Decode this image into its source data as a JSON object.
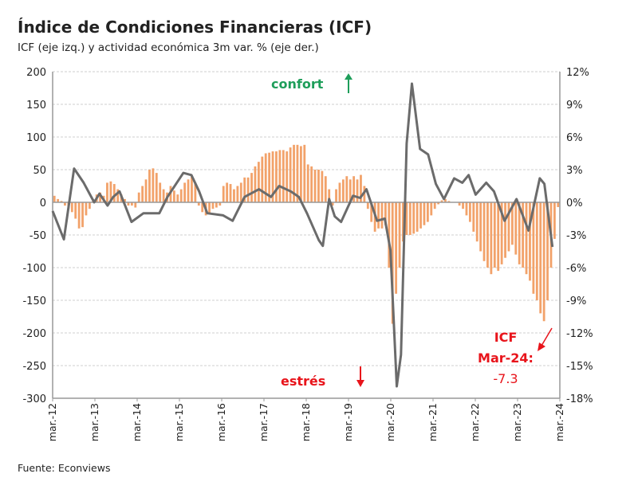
{
  "chart_data": {
    "type": "bar+line",
    "title": "Índice de Condiciones Financieras (ICF)",
    "subtitle": "ICF (eje izq.) y actividad económica 3m var. % (eje der.)",
    "source": "Fuente: Econviews",
    "x_tick_labels": [
      "mar.-12",
      "mar.-13",
      "mar.-14",
      "mar.-15",
      "mar.-16",
      "mar.-17",
      "mar.-18",
      "mar.-19",
      "mar.-20",
      "mar.-21",
      "mar.-22",
      "mar.-23",
      "mar.-24"
    ],
    "x_unit": "months since mar-2012",
    "y_left": {
      "range": [
        -300,
        200
      ],
      "ticks": [
        "200",
        "150",
        "100",
        "50",
        "0",
        "-50",
        "-100",
        "-150",
        "-200",
        "-250",
        "-300"
      ]
    },
    "y_right": {
      "range": [
        -18,
        12
      ],
      "ticks": [
        "12%",
        "9%",
        "6%",
        "3%",
        "0%",
        "-3%",
        "-6%",
        "-9%",
        "-12%",
        "-15%",
        "-18%"
      ]
    },
    "grid": true,
    "series": [
      {
        "name": "ICF",
        "axis": "left",
        "kind": "bar",
        "color": "#F2A26A",
        "values": [
          10,
          5,
          2,
          -5,
          -10,
          -15,
          -25,
          -40,
          -38,
          -20,
          -10,
          5,
          12,
          15,
          10,
          30,
          32,
          28,
          20,
          12,
          5,
          -5,
          -5,
          -8,
          15,
          25,
          35,
          50,
          52,
          45,
          30,
          20,
          15,
          25,
          18,
          12,
          20,
          30,
          35,
          40,
          30,
          -5,
          -15,
          -20,
          -18,
          -10,
          -8,
          -5,
          25,
          30,
          28,
          20,
          25,
          30,
          38,
          38,
          45,
          55,
          62,
          70,
          75,
          76,
          78,
          78,
          80,
          80,
          78,
          84,
          88,
          88,
          86,
          88,
          58,
          55,
          50,
          50,
          48,
          40,
          20,
          -5,
          20,
          30,
          35,
          40,
          35,
          40,
          35,
          42,
          25,
          -10,
          -30,
          -45,
          -40,
          -40,
          -35,
          -100,
          -186,
          -140,
          -100,
          -60,
          -50,
          -50,
          -48,
          -45,
          -40,
          -35,
          -30,
          -20,
          -10,
          -3,
          3,
          5,
          2,
          0,
          0,
          -5,
          -10,
          -20,
          -30,
          -45,
          -60,
          -75,
          -90,
          -100,
          -110,
          -100,
          -105,
          -95,
          -85,
          -75,
          -65,
          -80,
          -95,
          -100,
          -110,
          -120,
          -140,
          -150,
          -170,
          -182,
          -150,
          -100,
          -56,
          -7.3
        ]
      },
      {
        "name": "Actividad económica 3m var. %",
        "axis": "right",
        "kind": "line",
        "color": "#6B6B6B",
        "points": [
          [
            0,
            -0.8
          ],
          [
            3.2,
            -3.4
          ],
          [
            6.1,
            3.1
          ],
          [
            8.8,
            1.8
          ],
          [
            11.8,
            0
          ],
          [
            13.3,
            0.8
          ],
          [
            15.6,
            -0.3
          ],
          [
            17.2,
            0.5
          ],
          [
            19,
            1
          ],
          [
            22.4,
            -1.8
          ],
          [
            25.8,
            -1
          ],
          [
            30.3,
            -1
          ],
          [
            32.6,
            0.5
          ],
          [
            37.1,
            2.7
          ],
          [
            39.4,
            2.5
          ],
          [
            41.6,
            1
          ],
          [
            43.9,
            -1
          ],
          [
            48.4,
            -1.2
          ],
          [
            51.1,
            -1.7
          ],
          [
            54.5,
            0.5
          ],
          [
            58.6,
            1.2
          ],
          [
            62,
            0.5
          ],
          [
            64.3,
            1.5
          ],
          [
            67.6,
            1
          ],
          [
            69.9,
            0.5
          ],
          [
            72.2,
            -1
          ],
          [
            75.6,
            -3.5
          ],
          [
            76.7,
            -4
          ],
          [
            78.5,
            0.3
          ],
          [
            80.1,
            -1.3
          ],
          [
            81.9,
            -1.8
          ],
          [
            85.3,
            0.6
          ],
          [
            87.3,
            0.4
          ],
          [
            89.1,
            1.2
          ],
          [
            92.1,
            -1.7
          ],
          [
            94.3,
            -1.5
          ],
          [
            95.9,
            -4.4
          ],
          [
            97.7,
            -16.9
          ],
          [
            98.9,
            -14
          ],
          [
            100.5,
            5.4
          ],
          [
            102,
            10.9
          ],
          [
            104.3,
            4.9
          ],
          [
            106.6,
            4.4
          ],
          [
            108.8,
            1.7
          ],
          [
            111.1,
            0.3
          ],
          [
            114,
            2.2
          ],
          [
            116.3,
            1.8
          ],
          [
            118.1,
            2.5
          ],
          [
            120.1,
            0.7
          ],
          [
            123.1,
            1.8
          ],
          [
            125.3,
            1
          ],
          [
            128.3,
            -1.7
          ],
          [
            131.7,
            0.3
          ],
          [
            135.1,
            -2.6
          ],
          [
            138.3,
            2.2
          ],
          [
            139.6,
            1.7
          ],
          [
            141.9,
            -4.1
          ]
        ]
      }
    ],
    "annotations": {
      "confort": "confort",
      "estres": "estrés",
      "icf_label": "ICF",
      "icf_date": "Mar-24:",
      "icf_value": "-7.3",
      "green": "#1E9E5A",
      "red": "#E8141B"
    }
  }
}
